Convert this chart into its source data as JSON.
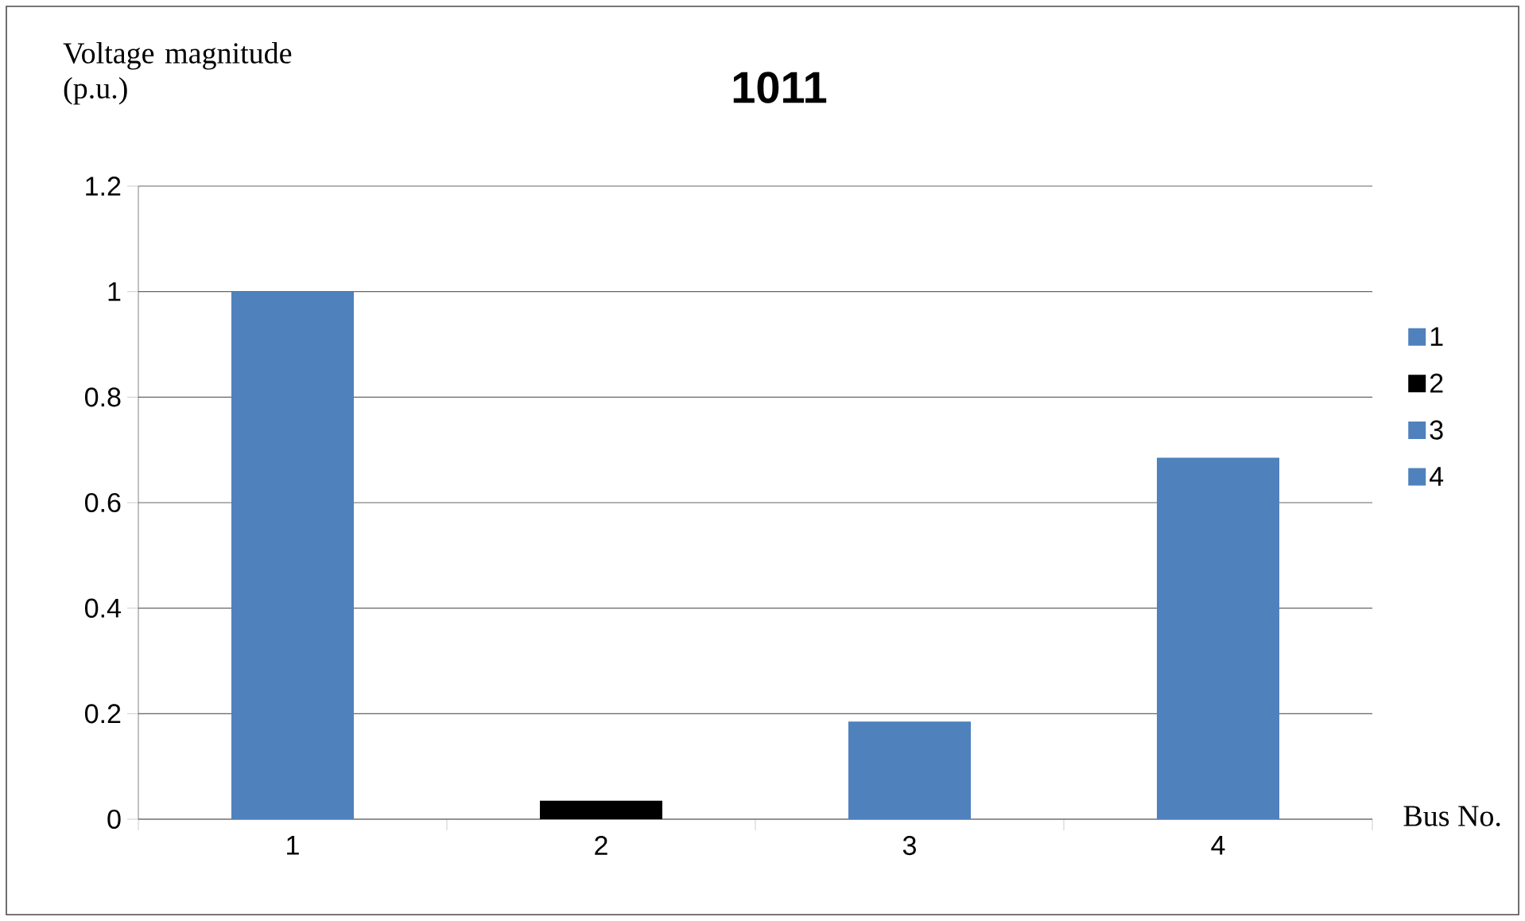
{
  "chart_data": {
    "type": "bar",
    "title": "1011",
    "xlabel": "Bus No.",
    "ylabel": "Voltage magnitude (p.u.)",
    "categories": [
      "1",
      "2",
      "3",
      "4"
    ],
    "series": [
      {
        "name": "1",
        "color": "#4f81bd",
        "values": [
          1.0,
          null,
          null,
          null
        ]
      },
      {
        "name": "2",
        "color": "#000000",
        "values": [
          null,
          0.035,
          null,
          null
        ]
      },
      {
        "name": "3",
        "color": "#4f81bd",
        "values": [
          null,
          null,
          0.185,
          null
        ]
      },
      {
        "name": "4",
        "color": "#4f81bd",
        "values": [
          null,
          null,
          null,
          0.685
        ]
      }
    ],
    "ylim": [
      0,
      1.2
    ],
    "yticks": [
      0,
      0.2,
      0.4,
      0.6,
      0.8,
      1,
      1.2
    ],
    "grid": "y",
    "legend": "right"
  }
}
